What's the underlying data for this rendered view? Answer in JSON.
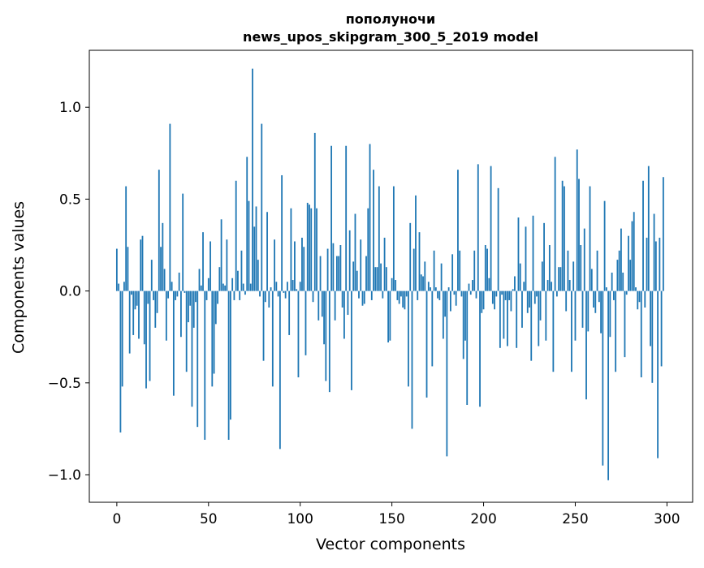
{
  "chart_data": {
    "type": "bar",
    "title": "пополуночи",
    "subtitle": "news_upos_skipgram_300_5_2019 model",
    "xlabel": "Vector components",
    "ylabel": "Components values",
    "xlim": [
      -15,
      314
    ],
    "ylim": [
      -1.15,
      1.31
    ],
    "xticks": [
      0,
      50,
      100,
      150,
      200,
      250,
      300
    ],
    "xtick_labels": [
      "0",
      "50",
      "100",
      "150",
      "200",
      "250",
      "300"
    ],
    "yticks": [
      -1.0,
      -0.5,
      0.0,
      0.5,
      1.0
    ],
    "ytick_labels": [
      "−1.0",
      "−0.5",
      "0.0",
      "0.5",
      "1.0"
    ],
    "grid": false,
    "bar_color": "#1f77b4",
    "values": [
      0.23,
      0.04,
      -0.77,
      -0.52,
      0.05,
      0.57,
      0.24,
      -0.34,
      -0.02,
      -0.24,
      -0.1,
      -0.08,
      -0.26,
      0.28,
      0.3,
      -0.29,
      -0.53,
      -0.07,
      -0.49,
      0.17,
      -0.05,
      -0.2,
      -0.12,
      0.66,
      0.24,
      0.37,
      0.12,
      -0.27,
      -0.04,
      0.91,
      0.05,
      -0.57,
      -0.05,
      -0.03,
      0.1,
      -0.25,
      0.53,
      -0.01,
      -0.44,
      -0.17,
      -0.08,
      -0.63,
      -0.2,
      -0.06,
      -0.74,
      0.12,
      0.03,
      0.32,
      -0.81,
      -0.05,
      0.07,
      0.27,
      -0.52,
      -0.45,
      -0.18,
      -0.07,
      0.13,
      0.39,
      0.04,
      0.03,
      0.28,
      -0.81,
      -0.7,
      0.07,
      -0.05,
      0.6,
      0.11,
      -0.05,
      0.22,
      0.04,
      -0.02,
      0.73,
      0.49,
      0.04,
      1.21,
      0.35,
      0.46,
      0.17,
      -0.03,
      0.91,
      -0.38,
      -0.06,
      0.43,
      -0.09,
      0.02,
      -0.52,
      0.28,
      0.05,
      -0.03,
      -0.86,
      0.63,
      -0.01,
      -0.04,
      0.05,
      -0.24,
      0.45,
      0.06,
      0.27,
      0.01,
      -0.47,
      0.05,
      0.29,
      0.24,
      -0.35,
      0.48,
      0.47,
      0.45,
      -0.06,
      0.86,
      0.45,
      -0.16,
      0.19,
      -0.14,
      -0.29,
      -0.49,
      0.23,
      -0.55,
      0.79,
      0.26,
      -0.16,
      0.19,
      0.19,
      0.25,
      -0.09,
      -0.26,
      0.79,
      -0.13,
      0.33,
      -0.54,
      0.16,
      0.42,
      0.11,
      -0.04,
      0.28,
      -0.08,
      -0.07,
      0.19,
      0.45,
      0.8,
      -0.05,
      0.66,
      0.13,
      0.13,
      0.57,
      0.15,
      -0.04,
      0.29,
      0.13,
      -0.28,
      -0.27,
      0.07,
      0.57,
      0.06,
      -0.05,
      -0.07,
      -0.03,
      -0.09,
      -0.1,
      -0.03,
      -0.52,
      0.37,
      -0.75,
      0.23,
      0.52,
      -0.05,
      0.32,
      0.09,
      0.08,
      0.16,
      -0.58,
      0.05,
      0.02,
      -0.41,
      0.22,
      0.02,
      -0.04,
      -0.05,
      0.15,
      -0.26,
      -0.14,
      -0.9,
      0.02,
      -0.11,
      0.2,
      -0.02,
      -0.08,
      0.66,
      0.22,
      -0.03,
      -0.37,
      -0.27,
      -0.62,
      0.04,
      -0.02,
      0.06,
      0.22,
      -0.04,
      0.69,
      -0.63,
      -0.12,
      -0.1,
      0.25,
      0.23,
      0.07,
      0.68,
      -0.07,
      -0.1,
      -0.03,
      0.56,
      -0.31,
      -0.02,
      -0.26,
      -0.05,
      -0.3,
      -0.05,
      -0.11,
      0.01,
      0.08,
      -0.31,
      0.4,
      0.15,
      -0.2,
      0.05,
      0.35,
      -0.12,
      -0.09,
      -0.38,
      0.41,
      -0.07,
      -0.03,
      -0.3,
      -0.16,
      0.16,
      0.37,
      -0.27,
      0.06,
      0.25,
      0.05,
      -0.44,
      0.73,
      -0.03,
      0.13,
      0.13,
      0.6,
      0.57,
      -0.11,
      0.22,
      0.06,
      -0.44,
      0.16,
      -0.27,
      0.77,
      0.61,
      0.25,
      -0.2,
      0.34,
      -0.59,
      -0.22,
      0.57,
      0.12,
      -0.09,
      -0.12,
      0.22,
      -0.06,
      -0.23,
      -0.95,
      0.49,
      0.02,
      -1.03,
      -0.25,
      0.1,
      -0.05,
      -0.44,
      0.17,
      0.22,
      0.34,
      0.1,
      -0.36,
      -0.02,
      0.3,
      0.17,
      0.38,
      0.43,
      0.02,
      -0.1,
      -0.06,
      -0.47,
      0.6,
      -0.09,
      0.29,
      0.68,
      -0.3,
      -0.5,
      0.42,
      0.27,
      -0.91,
      0.29,
      -0.41,
      0.62
    ]
  }
}
